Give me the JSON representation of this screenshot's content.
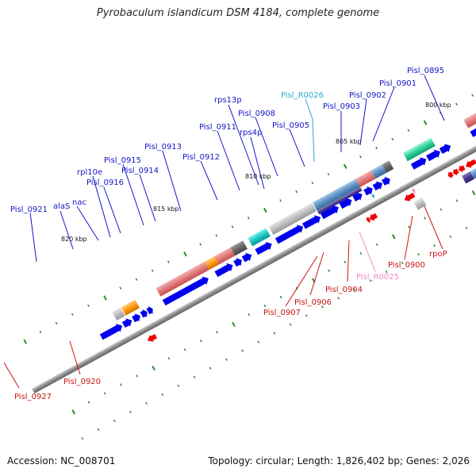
{
  "title": "Pyrobaculum islandicum DSM 4184, complete genome",
  "footer": {
    "accession": "Accession: NC_008701",
    "summary": "Topology: circular; Length: 1,826,402 bp; Genes: 2,026"
  },
  "colors": {
    "backbone": "#808080",
    "cds_forward": "#0000ee",
    "cds_reverse": "#ee0000",
    "label_forward": "#1515c8",
    "label_reverse": "#c81515",
    "trna_forward": "#22aacc",
    "trna_reverse": "#ee88cc",
    "tick": "#2a8a2a"
  },
  "ruler_labels": [
    "800 kbp",
    "805 kbp",
    "810 kbp",
    "815 kbp",
    "820 kbp"
  ],
  "forward_labels": [
    "Pisl_0895",
    "Pisl_0901",
    "Pisl_0902",
    "Pisl_0903",
    "Pisl_R0026",
    "Pisl_0905",
    "Pisl_0908",
    "rps13p",
    "Pisl_0911",
    "rps4p",
    "Pisl_0912",
    "Pisl_0913",
    "Pisl_0914",
    "Pisl_0915",
    "Pisl_0916",
    "rpl10e",
    "nac",
    "alaS",
    "Pisl_0921"
  ],
  "reverse_labels": [
    "rpoP",
    "Pisl_0900",
    "Pisl_R0025",
    "Pisl_0904",
    "Pisl_0906",
    "Pisl_0907",
    "Pisl_0920",
    "Pisl_0927"
  ],
  "legend_visible": false
}
